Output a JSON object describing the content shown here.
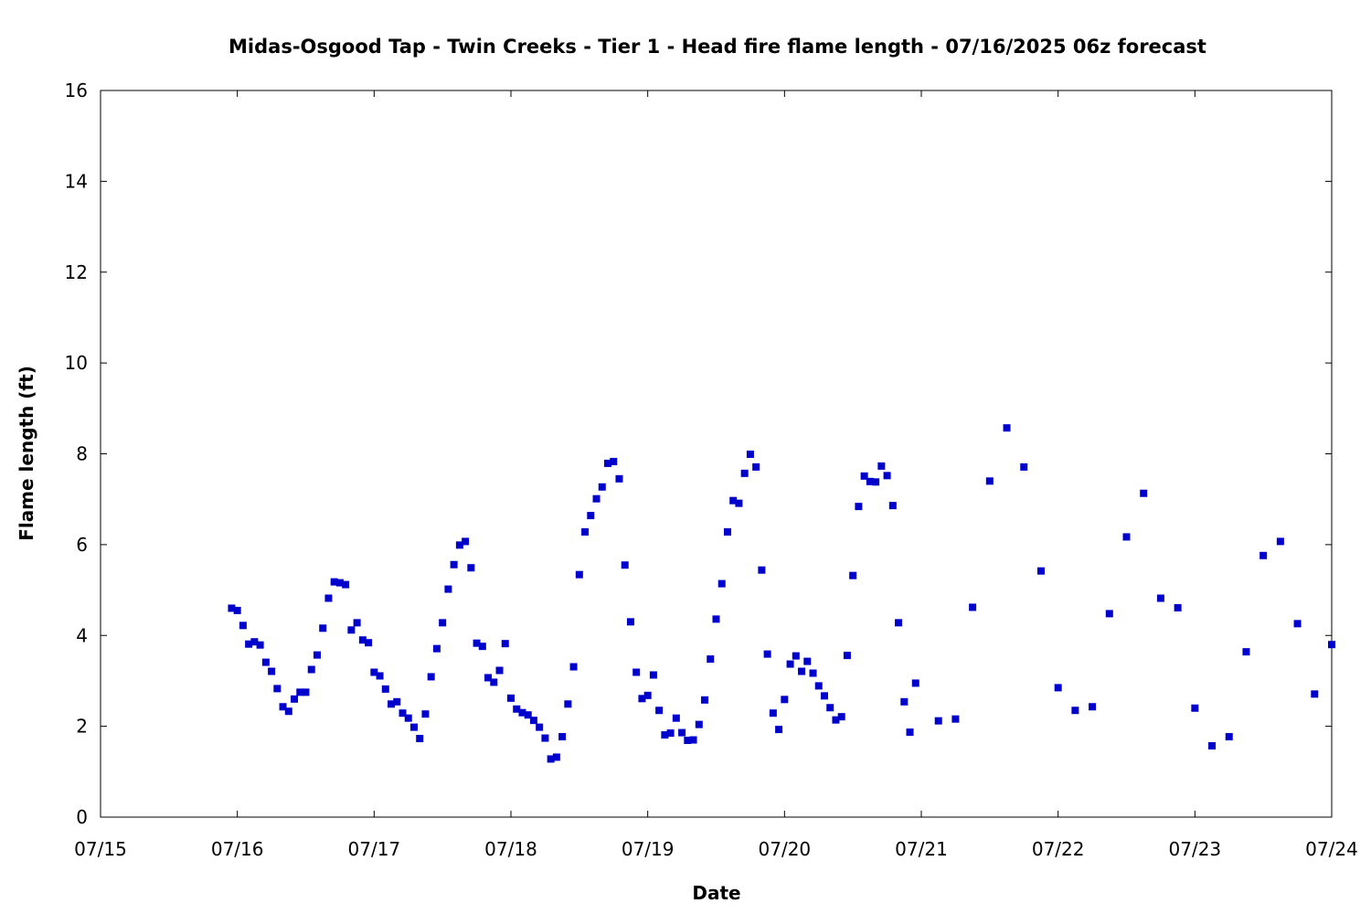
{
  "chart_data": {
    "type": "scatter",
    "title": "Midas-Osgood Tap - Twin Creeks - Tier 1 - Head fire flame length - 07/16/2025 06z forecast",
    "xlabel": "Date",
    "ylabel": "Flame length (ft)",
    "xlim": [
      "2025-07-15T00:00",
      "2025-07-24T00:00"
    ],
    "ylim": [
      0,
      16
    ],
    "x_ticks": [
      "07/15",
      "07/16",
      "07/17",
      "07/18",
      "07/19",
      "07/20",
      "07/21",
      "07/22",
      "07/23",
      "07/24"
    ],
    "y_ticks": [
      "0",
      "2",
      "4",
      "6",
      "8",
      "10",
      "12",
      "14",
      "16"
    ],
    "grid": false,
    "legend": "none",
    "marker_color": "#0000cc",
    "series": [
      {
        "x": [
          "2025-07-15T23:00",
          "2025-07-16T00:00",
          "2025-07-16T01:00",
          "2025-07-16T02:00",
          "2025-07-16T03:00",
          "2025-07-16T04:00",
          "2025-07-16T05:00",
          "2025-07-16T06:00",
          "2025-07-16T07:00",
          "2025-07-16T08:00",
          "2025-07-16T09:00",
          "2025-07-16T10:00",
          "2025-07-16T11:00",
          "2025-07-16T12:00",
          "2025-07-16T13:00",
          "2025-07-16T14:00",
          "2025-07-16T15:00",
          "2025-07-16T16:00",
          "2025-07-16T17:00",
          "2025-07-16T18:00",
          "2025-07-16T19:00",
          "2025-07-16T20:00",
          "2025-07-16T21:00",
          "2025-07-16T22:00",
          "2025-07-16T23:00",
          "2025-07-17T00:00",
          "2025-07-17T01:00",
          "2025-07-17T02:00",
          "2025-07-17T03:00",
          "2025-07-17T04:00",
          "2025-07-17T05:00",
          "2025-07-17T06:00",
          "2025-07-17T07:00",
          "2025-07-17T08:00",
          "2025-07-17T09:00",
          "2025-07-17T10:00",
          "2025-07-17T11:00",
          "2025-07-17T12:00",
          "2025-07-17T13:00",
          "2025-07-17T14:00",
          "2025-07-17T15:00",
          "2025-07-17T16:00",
          "2025-07-17T17:00",
          "2025-07-17T18:00",
          "2025-07-17T19:00",
          "2025-07-17T20:00",
          "2025-07-17T21:00",
          "2025-07-17T22:00",
          "2025-07-17T23:00",
          "2025-07-18T00:00",
          "2025-07-18T01:00",
          "2025-07-18T02:00",
          "2025-07-18T03:00",
          "2025-07-18T04:00",
          "2025-07-18T05:00",
          "2025-07-18T06:00",
          "2025-07-18T07:00",
          "2025-07-18T08:00",
          "2025-07-18T09:00",
          "2025-07-18T10:00",
          "2025-07-18T11:00",
          "2025-07-18T12:00",
          "2025-07-18T13:00",
          "2025-07-18T14:00",
          "2025-07-18T15:00",
          "2025-07-18T16:00",
          "2025-07-18T17:00",
          "2025-07-18T18:00",
          "2025-07-18T19:00",
          "2025-07-18T20:00",
          "2025-07-18T21:00",
          "2025-07-18T22:00",
          "2025-07-18T23:00",
          "2025-07-19T00:00",
          "2025-07-19T01:00",
          "2025-07-19T02:00",
          "2025-07-19T03:00",
          "2025-07-19T04:00",
          "2025-07-19T05:00",
          "2025-07-19T06:00",
          "2025-07-19T07:00",
          "2025-07-19T08:00",
          "2025-07-19T09:00",
          "2025-07-19T10:00",
          "2025-07-19T11:00",
          "2025-07-19T12:00",
          "2025-07-19T13:00",
          "2025-07-19T14:00",
          "2025-07-19T15:00",
          "2025-07-19T16:00",
          "2025-07-19T17:00",
          "2025-07-19T18:00",
          "2025-07-19T19:00",
          "2025-07-19T20:00",
          "2025-07-19T21:00",
          "2025-07-19T22:00",
          "2025-07-19T23:00",
          "2025-07-20T00:00",
          "2025-07-20T01:00",
          "2025-07-20T02:00",
          "2025-07-20T03:00",
          "2025-07-20T04:00",
          "2025-07-20T05:00",
          "2025-07-20T06:00",
          "2025-07-20T07:00",
          "2025-07-20T08:00",
          "2025-07-20T09:00",
          "2025-07-20T10:00",
          "2025-07-20T11:00",
          "2025-07-20T12:00",
          "2025-07-20T13:00",
          "2025-07-20T14:00",
          "2025-07-20T15:00",
          "2025-07-20T16:00",
          "2025-07-20T17:00",
          "2025-07-20T18:00",
          "2025-07-20T19:00",
          "2025-07-20T20:00",
          "2025-07-20T21:00",
          "2025-07-20T22:00",
          "2025-07-20T23:00",
          "2025-07-21T03:00",
          "2025-07-21T06:00",
          "2025-07-21T09:00",
          "2025-07-21T12:00",
          "2025-07-21T15:00",
          "2025-07-21T18:00",
          "2025-07-21T21:00",
          "2025-07-22T00:00",
          "2025-07-22T03:00",
          "2025-07-22T06:00",
          "2025-07-22T09:00",
          "2025-07-22T12:00",
          "2025-07-22T15:00",
          "2025-07-22T18:00",
          "2025-07-22T21:00",
          "2025-07-23T00:00",
          "2025-07-23T03:00",
          "2025-07-23T06:00",
          "2025-07-23T09:00",
          "2025-07-23T12:00",
          "2025-07-23T15:00",
          "2025-07-23T18:00",
          "2025-07-23T21:00",
          "2025-07-24T00:00"
        ],
        "y": [
          4.6,
          4.55,
          4.22,
          3.81,
          3.86,
          3.79,
          3.41,
          3.21,
          2.83,
          2.43,
          2.33,
          2.6,
          2.75,
          2.75,
          3.25,
          3.57,
          4.16,
          4.82,
          5.18,
          5.16,
          5.12,
          4.12,
          4.28,
          3.9,
          3.84,
          3.19,
          3.11,
          2.82,
          2.49,
          2.54,
          2.29,
          2.18,
          1.98,
          1.73,
          2.27,
          3.09,
          3.71,
          4.28,
          5.02,
          5.56,
          5.99,
          6.07,
          5.49,
          3.83,
          3.76,
          3.07,
          2.97,
          3.23,
          3.82,
          2.62,
          2.38,
          2.3,
          2.25,
          2.13,
          1.98,
          1.74,
          1.28,
          1.32,
          1.77,
          2.49,
          3.31,
          5.34,
          6.28,
          6.64,
          7.01,
          7.27,
          7.79,
          7.83,
          7.45,
          5.55,
          4.3,
          3.19,
          2.61,
          2.68,
          3.13,
          2.35,
          1.81,
          1.85,
          2.18,
          1.86,
          1.69,
          1.7,
          2.04,
          2.58,
          3.48,
          4.36,
          5.14,
          6.28,
          6.97,
          6.91,
          7.57,
          7.99,
          7.71,
          5.44,
          3.59,
          2.29,
          1.93,
          2.59,
          3.37,
          3.55,
          3.21,
          3.43,
          3.17,
          2.89,
          2.67,
          2.41,
          2.14,
          2.21,
          3.56,
          5.32,
          6.84,
          7.51,
          7.39,
          7.38,
          7.73,
          7.52,
          6.86,
          4.28,
          2.54,
          1.87,
          2.95,
          2.12,
          2.16,
          4.62,
          7.4,
          8.57,
          7.71,
          5.42,
          2.85,
          2.35,
          2.43,
          4.48,
          6.17,
          7.13,
          4.82,
          4.61,
          2.4,
          1.57,
          1.77,
          3.64,
          5.76,
          6.07,
          4.26,
          2.71,
          3.8
        ]
      }
    ]
  }
}
